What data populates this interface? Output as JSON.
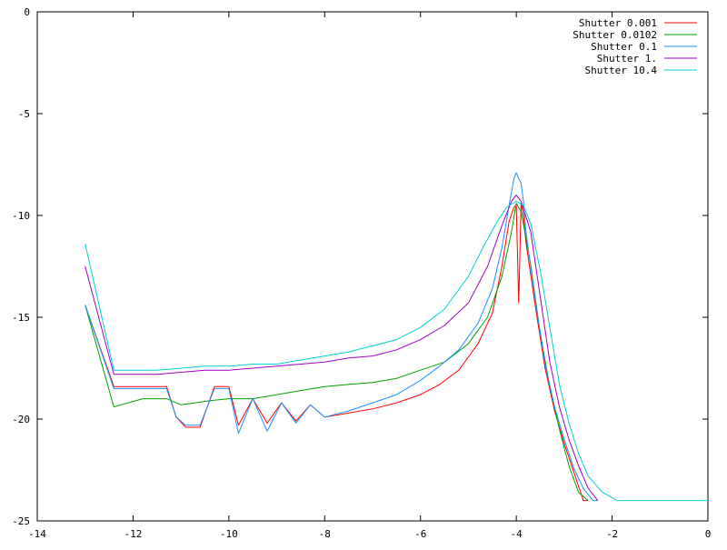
{
  "chart_data": {
    "type": "line",
    "title": "",
    "xlabel": "",
    "ylabel": "",
    "xlim": [
      -14,
      0
    ],
    "ylim": [
      -25,
      0
    ],
    "grid": false,
    "legend_position": "top-right",
    "x_ticks": [
      -14,
      -12,
      -10,
      -8,
      -6,
      -4,
      -2,
      0
    ],
    "x_tick_labels": [
      "-14",
      "-12",
      "-10",
      "-8",
      "-6",
      "-4",
      "-2",
      "0"
    ],
    "y_ticks": [
      0,
      -5,
      -10,
      -15,
      -20,
      -25
    ],
    "y_tick_labels": [
      "0",
      "-5",
      "-10",
      "-15",
      "-20",
      "-25"
    ],
    "series": [
      {
        "name": "Shutter 0.001",
        "color": "#ff0000",
        "x": [
          -13.0,
          -12.4,
          -11.3,
          -11.1,
          -10.9,
          -10.6,
          -10.3,
          -10.0,
          -9.8,
          -9.5,
          -9.2,
          -8.9,
          -8.6,
          -8.3,
          -8.0,
          -7.5,
          -7.0,
          -6.5,
          -6.0,
          -5.6,
          -5.2,
          -4.8,
          -4.5,
          -4.3,
          -4.15,
          -4.05,
          -4.0,
          -3.95,
          -3.9,
          -3.85,
          -3.8,
          -3.6,
          -3.4,
          -3.2,
          -3.0,
          -2.8,
          -2.6,
          -2.5
        ],
        "y": [
          -14.4,
          -18.4,
          -18.4,
          -19.9,
          -20.4,
          -20.4,
          -18.4,
          -18.4,
          -20.3,
          -19.0,
          -20.2,
          -19.2,
          -20.1,
          -19.3,
          -19.9,
          -19.7,
          -19.5,
          -19.2,
          -18.8,
          -18.3,
          -17.6,
          -16.3,
          -14.8,
          -12.5,
          -10.3,
          -9.6,
          -9.5,
          -14.3,
          -9.4,
          -10.0,
          -11.3,
          -14.5,
          -17.5,
          -19.6,
          -21.2,
          -22.6,
          -24.0,
          -24.0
        ]
      },
      {
        "name": "Shutter 0.0102",
        "color": "#00a000",
        "x": [
          -13.0,
          -12.4,
          -11.8,
          -11.3,
          -11.0,
          -10.7,
          -10.4,
          -10.0,
          -9.5,
          -9.0,
          -8.5,
          -8.0,
          -7.5,
          -7.0,
          -6.5,
          -6.0,
          -5.5,
          -5.0,
          -4.6,
          -4.3,
          -4.1,
          -4.0,
          -3.9,
          -3.7,
          -3.5,
          -3.3,
          -3.1,
          -2.9,
          -2.7,
          -2.5
        ],
        "y": [
          -14.4,
          -19.4,
          -19.0,
          -19.0,
          -19.3,
          -19.2,
          -19.1,
          -19.0,
          -19.0,
          -18.8,
          -18.6,
          -18.4,
          -18.3,
          -18.2,
          -18.0,
          -17.6,
          -17.2,
          -16.3,
          -15.0,
          -13.0,
          -10.8,
          -9.4,
          -9.8,
          -12.4,
          -15.8,
          -18.4,
          -20.5,
          -22.3,
          -23.6,
          -24.0
        ]
      },
      {
        "name": "Shutter 0.1",
        "color": "#1e90ff",
        "x": [
          -13.0,
          -12.4,
          -11.3,
          -11.1,
          -10.9,
          -10.6,
          -10.3,
          -10.0,
          -9.8,
          -9.5,
          -9.2,
          -8.9,
          -8.6,
          -8.3,
          -8.0,
          -7.5,
          -7.0,
          -6.5,
          -6.0,
          -5.6,
          -5.2,
          -4.8,
          -4.5,
          -4.3,
          -4.15,
          -4.05,
          -4.0,
          -3.95,
          -3.9,
          -3.85,
          -3.8,
          -3.6,
          -3.4,
          -3.2,
          -3.0,
          -2.8,
          -2.6,
          -2.4,
          -2.3
        ],
        "y": [
          -14.4,
          -18.5,
          -18.5,
          -19.9,
          -20.3,
          -20.3,
          -18.5,
          -18.5,
          -20.7,
          -19.0,
          -20.6,
          -19.2,
          -20.2,
          -19.3,
          -19.9,
          -19.6,
          -19.2,
          -18.8,
          -18.1,
          -17.4,
          -16.6,
          -15.3,
          -13.6,
          -11.6,
          -9.5,
          -8.2,
          -7.9,
          -8.2,
          -8.4,
          -9.3,
          -10.8,
          -14.2,
          -17.3,
          -19.4,
          -21.0,
          -22.4,
          -23.4,
          -24.0,
          -24.0
        ]
      },
      {
        "name": "Shutter 1.",
        "color": "#a000c8",
        "x": [
          -13.0,
          -12.4,
          -11.5,
          -11.0,
          -10.5,
          -10.0,
          -9.5,
          -9.0,
          -8.5,
          -8.0,
          -7.5,
          -7.0,
          -6.5,
          -6.0,
          -5.5,
          -5.0,
          -4.6,
          -4.3,
          -4.1,
          -4.0,
          -3.9,
          -3.7,
          -3.5,
          -3.3,
          -3.1,
          -2.9,
          -2.7,
          -2.5,
          -2.3
        ],
        "y": [
          -12.5,
          -17.8,
          -17.8,
          -17.7,
          -17.6,
          -17.6,
          -17.5,
          -17.4,
          -17.3,
          -17.2,
          -17.0,
          -16.9,
          -16.6,
          -16.1,
          -15.4,
          -14.3,
          -12.5,
          -10.5,
          -9.3,
          -9.0,
          -9.3,
          -10.8,
          -14.0,
          -17.2,
          -19.4,
          -21.0,
          -22.3,
          -23.4,
          -24.0
        ]
      },
      {
        "name": "Shutter 10.4",
        "color": "#00d0d0",
        "x": [
          -13.0,
          -12.4,
          -11.5,
          -11.0,
          -10.5,
          -10.0,
          -9.5,
          -9.0,
          -8.5,
          -8.0,
          -7.5,
          -7.0,
          -6.5,
          -6.0,
          -5.5,
          -5.0,
          -4.7,
          -4.4,
          -4.2,
          -4.0,
          -3.85,
          -3.7,
          -3.5,
          -3.3,
          -3.1,
          -2.9,
          -2.7,
          -2.5,
          -2.2,
          -1.9,
          -1.7,
          0.0
        ],
        "y": [
          -11.4,
          -17.6,
          -17.6,
          -17.5,
          -17.4,
          -17.4,
          -17.3,
          -17.3,
          -17.1,
          -16.9,
          -16.7,
          -16.4,
          -16.1,
          -15.5,
          -14.6,
          -13.0,
          -11.6,
          -10.3,
          -9.6,
          -9.3,
          -9.5,
          -10.4,
          -12.7,
          -15.5,
          -18.3,
          -20.2,
          -21.7,
          -22.8,
          -23.6,
          -24.0,
          -24.0,
          -24.0
        ]
      }
    ]
  }
}
